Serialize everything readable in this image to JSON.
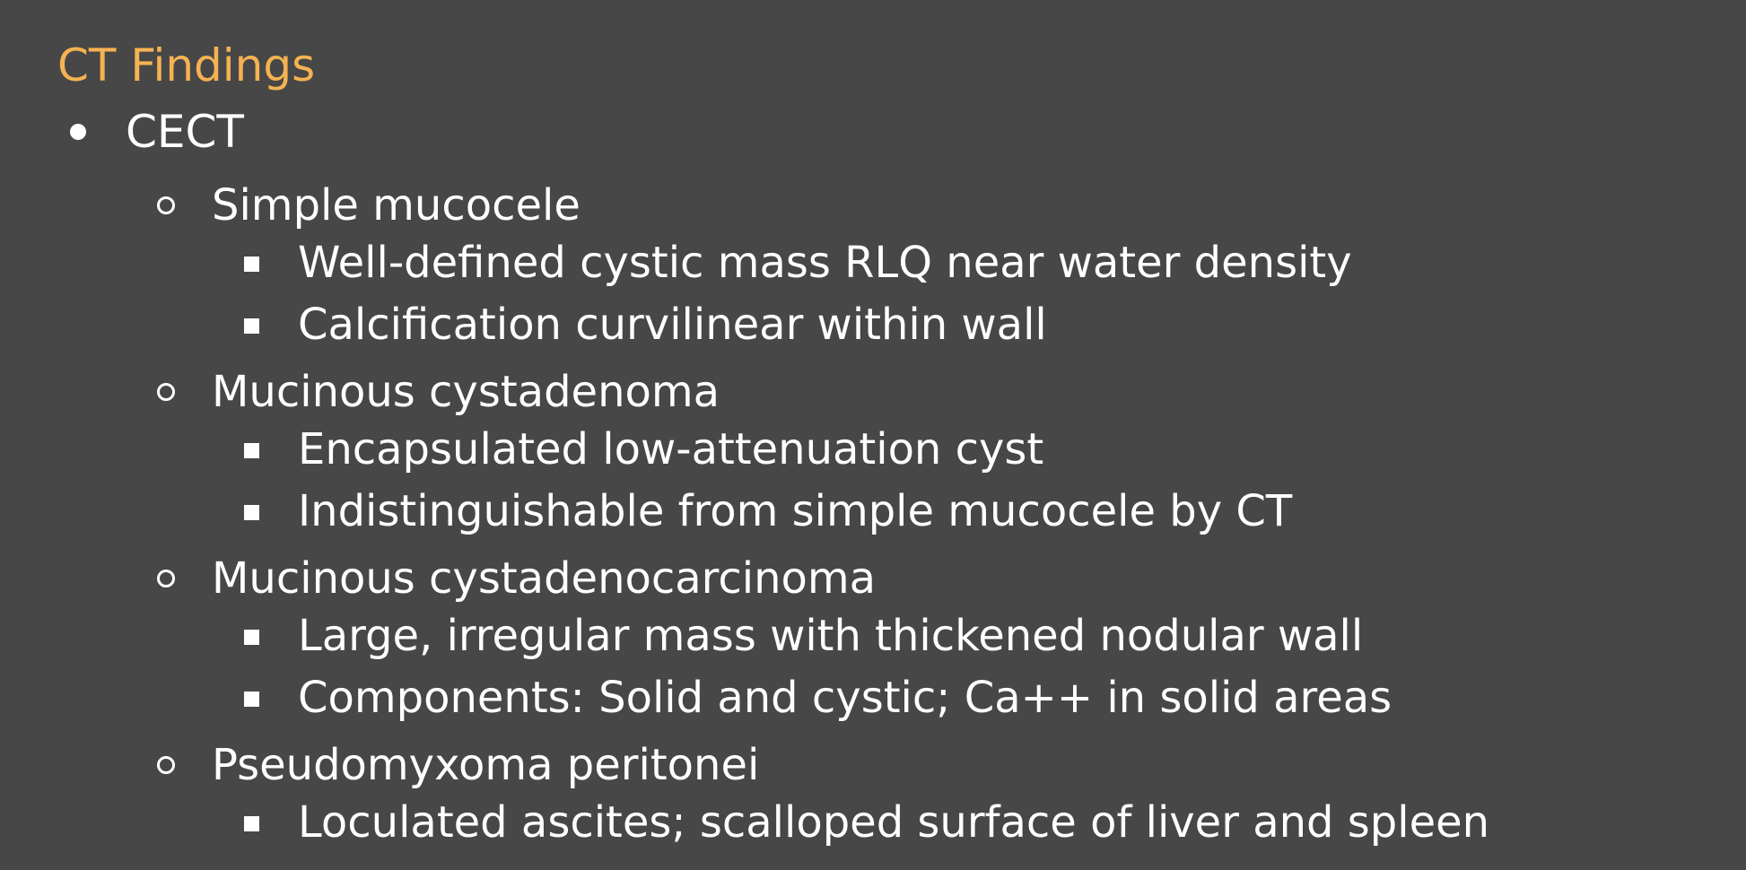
{
  "slide": {
    "title": "CT Findings",
    "title_color": "#f5b252",
    "background_color": "#474747",
    "items": [
      {
        "level": 1,
        "bullet": "disc",
        "text": "CECT"
      },
      {
        "level": 2,
        "bullet": "circle",
        "text": "Simple mucocele"
      },
      {
        "level": 3,
        "bullet": "square",
        "text": "Well-defined cystic mass RLQ near water density"
      },
      {
        "level": 3,
        "bullet": "square",
        "text": "Calcification curvilinear within wall"
      },
      {
        "level": 2,
        "bullet": "circle",
        "text": "Mucinous cystadenoma"
      },
      {
        "level": 3,
        "bullet": "square",
        "text": "Encapsulated low-attenuation cyst"
      },
      {
        "level": 3,
        "bullet": "square",
        "text": "Indistinguishable from simple mucocele by CT"
      },
      {
        "level": 2,
        "bullet": "circle",
        "text": "Mucinous cystadenocarcinoma"
      },
      {
        "level": 3,
        "bullet": "square",
        "text": "Large, irregular mass with thickened nodular wall"
      },
      {
        "level": 3,
        "bullet": "square",
        "text": "Components: Solid and cystic; Ca++ in solid areas"
      },
      {
        "level": 2,
        "bullet": "circle",
        "text": "Pseudomyxoma peritonei"
      },
      {
        "level": 3,
        "bullet": "square",
        "text": "Loculated ascites; scalloped surface of liver and spleen"
      }
    ]
  }
}
